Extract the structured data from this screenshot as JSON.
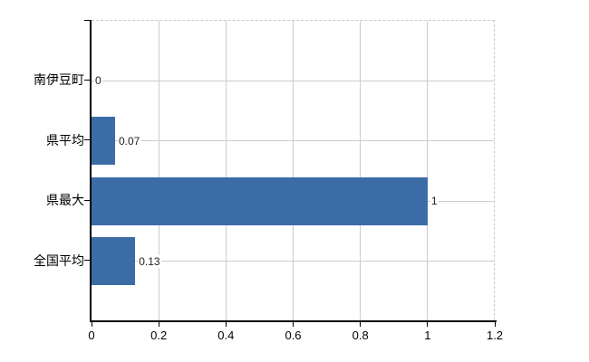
{
  "page": {
    "background_color": "#ffffff"
  },
  "chart_data": {
    "type": "bar",
    "orientation": "horizontal",
    "title": "",
    "xlabel": "",
    "ylabel": "",
    "categories": [
      "南伊豆町",
      "県平均",
      "県最大",
      "全国平均"
    ],
    "values": [
      0,
      0.07,
      1,
      0.13
    ],
    "value_labels": [
      "0",
      "0.07",
      "1",
      "0.13"
    ],
    "xlim": [
      0,
      1.2
    ],
    "x_ticks": [
      0,
      0.2,
      0.4,
      0.6,
      0.8,
      1,
      1.2
    ],
    "x_tick_labels": [
      "0",
      "0.2",
      "0.4",
      "0.6",
      "0.8",
      "1",
      "1.2"
    ],
    "grid": true,
    "legend": false,
    "bar_color": "#3c6ca6",
    "grid_color": "#cccccc",
    "dashed_border_color": "#c9c9c9",
    "axis_color": "#000000",
    "category_label_color": "#000000",
    "tick_label_color": "#000000",
    "value_label_color": "#222222"
  }
}
